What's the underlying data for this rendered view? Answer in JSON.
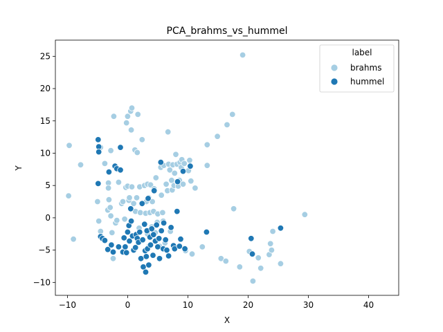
{
  "chart_data": {
    "type": "scatter",
    "title": "PCA_brahms_vs_hummel",
    "xlabel": "X",
    "ylabel": "Y",
    "xlim": [
      -12,
      45
    ],
    "ylim": [
      -12,
      27.5
    ],
    "xticks": [
      -10,
      0,
      10,
      20,
      30,
      40
    ],
    "yticks": [
      -10,
      -5,
      0,
      5,
      10,
      15,
      20,
      25
    ],
    "grid": false,
    "legend": {
      "title": "label",
      "placement": "top-right"
    },
    "series": [
      {
        "name": "brahms",
        "color": "#a6cee3",
        "points": [
          [
            -9.7,
            11.2
          ],
          [
            -9.8,
            3.4
          ],
          [
            -9.0,
            -3.3
          ],
          [
            -7.8,
            8.2
          ],
          [
            -5.0,
            2.5
          ],
          [
            -4.8,
            -0.5
          ],
          [
            -4.5,
            10.9
          ],
          [
            -4.5,
            -2.1
          ],
          [
            -3.8,
            8.4
          ],
          [
            -3.2,
            5.4
          ],
          [
            -3.2,
            4.6
          ],
          [
            -3.1,
            2.8
          ],
          [
            -3.3,
            1.2
          ],
          [
            -2.9,
            1.6
          ],
          [
            -2.8,
            10.4
          ],
          [
            -2.8,
            0.3
          ],
          [
            -2.6,
            -2.3
          ],
          [
            -2.4,
            -6.3
          ],
          [
            -2.3,
            15.7
          ],
          [
            -2.0,
            -0.8
          ],
          [
            -1.8,
            -0.4
          ],
          [
            -1.5,
            5.5
          ],
          [
            -1.0,
            2.2
          ],
          [
            -0.8,
            2.5
          ],
          [
            -0.5,
            -0.2
          ],
          [
            -0.3,
            4.7
          ],
          [
            -0.2,
            14.7
          ],
          [
            0.0,
            15.7
          ],
          [
            0.0,
            4.9
          ],
          [
            0.2,
            2.7
          ],
          [
            0.3,
            3.1
          ],
          [
            0.5,
            16.5
          ],
          [
            0.7,
            17.0
          ],
          [
            0.6,
            13.6
          ],
          [
            0.7,
            4.8
          ],
          [
            1.0,
            2.2
          ],
          [
            1.2,
            10.5
          ],
          [
            1.3,
            1.0
          ],
          [
            1.5,
            3.1
          ],
          [
            1.6,
            10.1
          ],
          [
            1.7,
            16.0
          ],
          [
            1.9,
            -1.6
          ],
          [
            2.0,
            4.8
          ],
          [
            2.1,
            0.8
          ],
          [
            2.4,
            12.1
          ],
          [
            2.5,
            -3.5
          ],
          [
            2.8,
            5.0
          ],
          [
            3.0,
            0.7
          ],
          [
            3.1,
            2.5
          ],
          [
            3.3,
            -2.5
          ],
          [
            3.3,
            5.2
          ],
          [
            3.5,
            3.1
          ],
          [
            3.6,
            -4.3
          ],
          [
            3.7,
            0.8
          ],
          [
            3.8,
            5.1
          ],
          [
            4.0,
            -1.4
          ],
          [
            4.1,
            2.5
          ],
          [
            4.3,
            1.0
          ],
          [
            4.4,
            4.5
          ],
          [
            4.6,
            -2.3
          ],
          [
            4.7,
            6.2
          ],
          [
            4.9,
            -0.7
          ],
          [
            5.0,
            0.6
          ],
          [
            5.1,
            -3.2
          ],
          [
            5.3,
            -4.4
          ],
          [
            5.5,
            7.8
          ],
          [
            5.6,
            3.5
          ],
          [
            5.8,
            0.8
          ],
          [
            5.9,
            -0.5
          ],
          [
            6.0,
            8.1
          ],
          [
            6.2,
            -3.9
          ],
          [
            6.4,
            5.2
          ],
          [
            6.6,
            4.2
          ],
          [
            6.7,
            13.3
          ],
          [
            6.8,
            8.3
          ],
          [
            7.0,
            7.4
          ],
          [
            7.1,
            -2.1
          ],
          [
            7.3,
            5.8
          ],
          [
            7.4,
            4.3
          ],
          [
            7.5,
            8.2
          ],
          [
            7.7,
            5.0
          ],
          [
            7.8,
            6.9
          ],
          [
            8.0,
            9.8
          ],
          [
            8.2,
            8.3
          ],
          [
            8.3,
            5.5
          ],
          [
            8.4,
            4.9
          ],
          [
            8.6,
            5.8
          ],
          [
            8.7,
            8.6
          ],
          [
            8.9,
            7.8
          ],
          [
            9.0,
            9.0
          ],
          [
            9.2,
            5.2
          ],
          [
            9.4,
            8.4
          ],
          [
            9.6,
            -5.1
          ],
          [
            10.1,
            7.3
          ],
          [
            10.3,
            8.9
          ],
          [
            10.5,
            5.7
          ],
          [
            10.7,
            -5.6
          ],
          [
            11.2,
            4.6
          ],
          [
            12.4,
            -4.5
          ],
          [
            13.2,
            11.3
          ],
          [
            13.2,
            8.1
          ],
          [
            14.9,
            12.6
          ],
          [
            15.5,
            -6.3
          ],
          [
            16.3,
            -6.7
          ],
          [
            16.5,
            14.4
          ],
          [
            17.4,
            16.0
          ],
          [
            17.6,
            1.4
          ],
          [
            18.6,
            -7.6
          ],
          [
            19.1,
            25.2
          ],
          [
            20.2,
            -5.2
          ],
          [
            20.8,
            -9.8
          ],
          [
            21.7,
            -6.2
          ],
          [
            22.1,
            -7.8
          ],
          [
            23.5,
            -5.7
          ],
          [
            23.7,
            -4.0
          ],
          [
            23.9,
            -5.0
          ],
          [
            24.1,
            -2.1
          ],
          [
            25.4,
            -7.1
          ],
          [
            29.4,
            0.5
          ]
        ]
      },
      {
        "name": "hummel",
        "color": "#1f78b4",
        "points": [
          [
            -4.9,
            12.1
          ],
          [
            -4.8,
            11.0
          ],
          [
            -4.8,
            10.2
          ],
          [
            -4.9,
            5.3
          ],
          [
            -4.5,
            -2.9
          ],
          [
            -4.2,
            -3.2
          ],
          [
            -3.8,
            -3.5
          ],
          [
            -3.3,
            -4.9
          ],
          [
            -3.1,
            7.1
          ],
          [
            -2.7,
            -4.2
          ],
          [
            -2.4,
            -5.3
          ],
          [
            -2.1,
            8.0
          ],
          [
            -1.8,
            7.6
          ],
          [
            -1.5,
            -4.5
          ],
          [
            -1.2,
            7.4
          ],
          [
            -1.2,
            10.9
          ],
          [
            -0.8,
            -5.3
          ],
          [
            -0.6,
            -3.1
          ],
          [
            -0.4,
            -4.5
          ],
          [
            -0.2,
            -5.4
          ],
          [
            0.0,
            -2.2
          ],
          [
            0.2,
            -1.2
          ],
          [
            0.3,
            -3.6
          ],
          [
            0.5,
            1.4
          ],
          [
            0.6,
            -0.5
          ],
          [
            0.8,
            -2.8
          ],
          [
            1.0,
            -5.0
          ],
          [
            1.3,
            -4.6
          ],
          [
            1.4,
            -2.6
          ],
          [
            1.6,
            -3.2
          ],
          [
            1.8,
            -3.8
          ],
          [
            2.0,
            -2.2
          ],
          [
            2.2,
            -6.3
          ],
          [
            2.4,
            2.2
          ],
          [
            2.5,
            -3.4
          ],
          [
            2.6,
            -7.6
          ],
          [
            2.8,
            -1.0
          ],
          [
            2.9,
            -5.1
          ],
          [
            3.0,
            -8.4
          ],
          [
            3.1,
            -6.0
          ],
          [
            3.2,
            -2.0
          ],
          [
            3.3,
            -4.8
          ],
          [
            3.4,
            3.0
          ],
          [
            3.5,
            -7.3
          ],
          [
            3.7,
            -3.0
          ],
          [
            3.8,
            -4.2
          ],
          [
            4.0,
            -1.7
          ],
          [
            4.2,
            -5.8
          ],
          [
            4.3,
            -2.6
          ],
          [
            4.4,
            4.2
          ],
          [
            4.6,
            -3.6
          ],
          [
            4.8,
            -1.1
          ],
          [
            5.0,
            -4.5
          ],
          [
            5.2,
            -3.2
          ],
          [
            5.3,
            -6.3
          ],
          [
            5.5,
            8.6
          ],
          [
            5.6,
            -2.0
          ],
          [
            5.9,
            -4.8
          ],
          [
            6.0,
            -0.8
          ],
          [
            6.3,
            -3.4
          ],
          [
            6.5,
            -5.0
          ],
          [
            6.8,
            -5.9
          ],
          [
            7.2,
            -1.5
          ],
          [
            7.6,
            -4.3
          ],
          [
            7.8,
            -4.8
          ],
          [
            8.2,
            1.0
          ],
          [
            8.3,
            5.6
          ],
          [
            8.6,
            -4.4
          ],
          [
            8.8,
            -3.3
          ],
          [
            9.2,
            7.2
          ],
          [
            9.5,
            -4.8
          ],
          [
            10.4,
            8.0
          ],
          [
            13.1,
            -2.2
          ],
          [
            20.5,
            -3.2
          ],
          [
            20.7,
            -5.6
          ],
          [
            25.4,
            -1.6
          ]
        ]
      }
    ]
  }
}
